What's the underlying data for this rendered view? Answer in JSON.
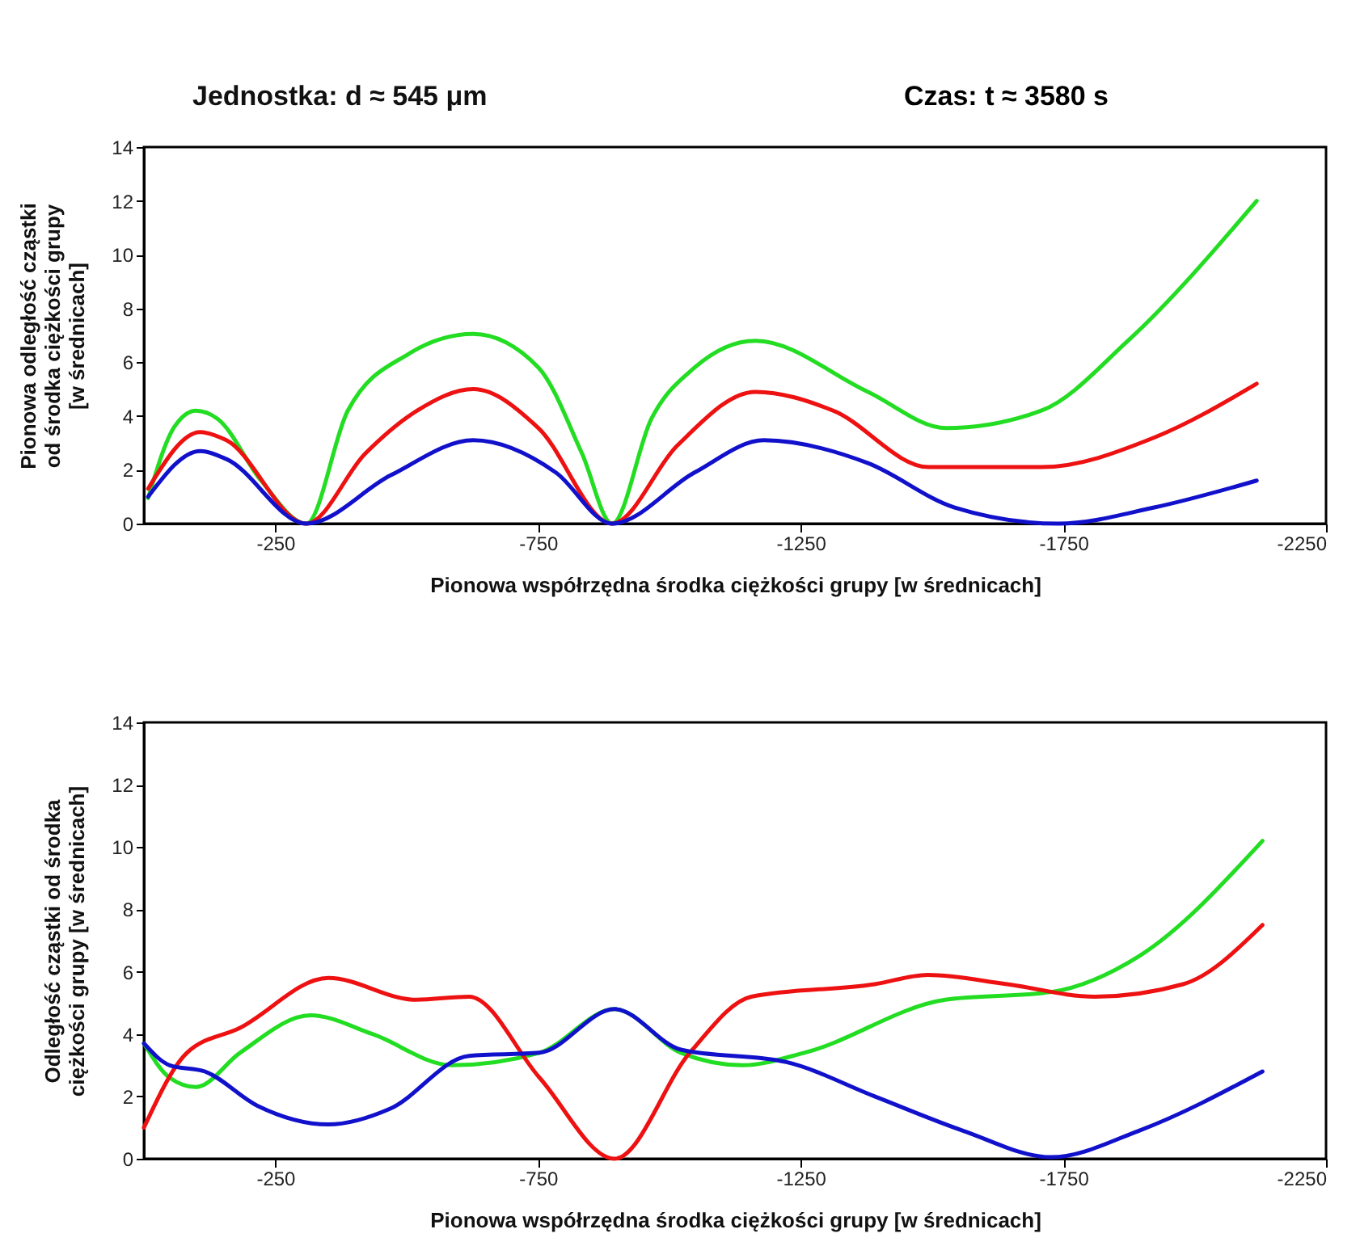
{
  "chart_data": [
    {
      "type": "line",
      "title": "Jednostka: d ≈ 545 μm",
      "subtitle": "Czas: t ≈ 3580 s",
      "xlabel": "Pionowa współrzędna środka ciężkości grupy [w średnicach]",
      "ylabel": "Pionowa odległość cząstki\nod środka ciężkości grupy\n[w średnicach]",
      "xlim": [
        0,
        -2250
      ],
      "xticks": [
        -250,
        -750,
        -1250,
        -1750,
        -2250
      ],
      "ylim": [
        0,
        14
      ],
      "yticks": [
        0,
        2,
        4,
        6,
        8,
        10,
        12,
        14
      ],
      "grid": false,
      "legend": false,
      "line_style": "solid",
      "marker": "none",
      "series": [
        {
          "color": "#22dd22",
          "x": [
            -8,
            -58,
            -99,
            -140,
            -223,
            -309,
            -388,
            -503,
            -627,
            -751,
            -834,
            -891,
            -966,
            -1048,
            -1164,
            -1378,
            -1527,
            -1708,
            -1873,
            -2118
          ],
          "values": [
            0.95,
            3.6,
            4.2,
            3.9,
            1.6,
            0,
            4.2,
            6.3,
            7.05,
            5.8,
            2.6,
            0,
            3.9,
            5.8,
            6.8,
            4.9,
            3.55,
            4.2,
            6.8,
            12
          ]
        },
        {
          "color": "#ee1111",
          "x": [
            -8,
            -107,
            -157,
            -309,
            -421,
            -520,
            -627,
            -751,
            -891,
            -1015,
            -1164,
            -1312,
            -1494,
            -1708,
            -1923,
            -2118
          ],
          "values": [
            1.3,
            3.4,
            3.1,
            0,
            2.6,
            4.2,
            5.0,
            3.55,
            0,
            2.9,
            4.9,
            4.2,
            2.1,
            2.1,
            3.2,
            5.2
          ]
        },
        {
          "color": "#1111cc",
          "x": [
            -8,
            -107,
            -157,
            -309,
            -470,
            -627,
            -784,
            -891,
            -1048,
            -1180,
            -1378,
            -1543,
            -1741,
            -1923,
            -2118
          ],
          "values": [
            1.0,
            2.7,
            2.4,
            0,
            1.8,
            3.1,
            1.9,
            0,
            1.9,
            3.1,
            2.25,
            0.6,
            0,
            0.6,
            1.6
          ]
        }
      ]
    },
    {
      "type": "line",
      "xlabel": "Pionowa współrzędna środka ciężkości grupy [w średnicach]",
      "ylabel": "Odległość cząstki od środka\nciężkości grupy [w średnicach]",
      "xlim": [
        0,
        -2250
      ],
      "xticks": [
        -250,
        -750,
        -1250,
        -1750,
        -2250
      ],
      "ylim": [
        0,
        14
      ],
      "yticks": [
        0,
        2,
        4,
        6,
        8,
        10,
        12,
        14
      ],
      "grid": false,
      "legend": false,
      "line_style": "solid",
      "marker": "none",
      "series": [
        {
          "color": "#22dd22",
          "x": [
            0,
            -49,
            -99,
            -183,
            -317,
            -435,
            -586,
            -753,
            -896,
            -1022,
            -1139,
            -1257,
            -1525,
            -1727,
            -1894,
            -2129
          ],
          "values": [
            3.7,
            2.6,
            2.3,
            3.4,
            4.6,
            4.0,
            3.0,
            3.4,
            4.8,
            3.4,
            3.0,
            3.4,
            5.1,
            5.35,
            6.5,
            10.2
          ]
        },
        {
          "color": "#ee1111",
          "x": [
            0,
            -82,
            -183,
            -351,
            -518,
            -619,
            -753,
            -896,
            -1039,
            -1156,
            -1391,
            -1492,
            -1643,
            -1810,
            -1978,
            -2129
          ],
          "values": [
            1.0,
            3.4,
            4.2,
            5.8,
            5.1,
            5.2,
            2.6,
            0,
            3.4,
            5.2,
            5.6,
            5.9,
            5.6,
            5.2,
            5.6,
            7.5
          ]
        },
        {
          "color": "#1111cc",
          "x": [
            0,
            -49,
            -116,
            -216,
            -351,
            -468,
            -619,
            -753,
            -896,
            -1022,
            -1223,
            -1391,
            -1559,
            -1727,
            -1894,
            -2129
          ],
          "values": [
            3.7,
            3.0,
            2.8,
            1.7,
            1.1,
            1.6,
            3.3,
            3.4,
            4.8,
            3.5,
            3.1,
            2.0,
            0.9,
            0.05,
            0.9,
            2.8
          ]
        }
      ]
    }
  ]
}
